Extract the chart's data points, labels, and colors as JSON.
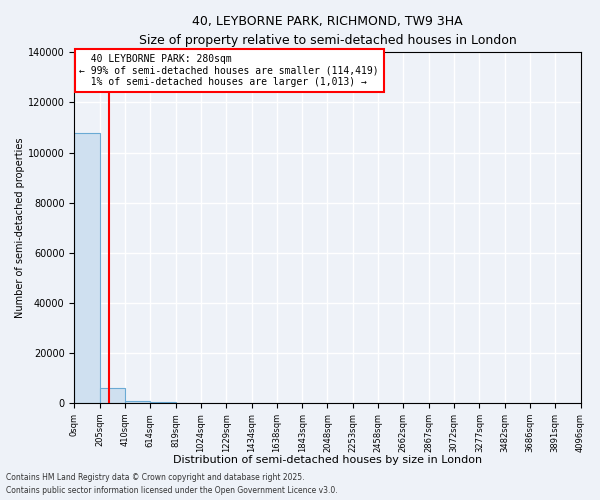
{
  "title": "40, LEYBORNE PARK, RICHMOND, TW9 3HA",
  "subtitle": "Size of property relative to semi-detached houses in London",
  "xlabel": "Distribution of semi-detached houses by size in London",
  "ylabel": "Number of semi-detached properties",
  "bar_color": "#cfe0f0",
  "bar_edge_color": "#6aaad4",
  "vline_color": "red",
  "vline_x": 280,
  "annotation_title": "40 LEYBORNE PARK: 280sqm",
  "annotation_line1": "← 99% of semi-detached houses are smaller (114,419)",
  "annotation_line2": "1% of semi-detached houses are larger (1,013) →",
  "bin_edges": [
    0,
    205,
    410,
    614,
    819,
    1024,
    1229,
    1434,
    1638,
    1843,
    2048,
    2253,
    2458,
    2662,
    2867,
    3072,
    3277,
    3482,
    3686,
    3891,
    4096
  ],
  "bar_heights": [
    108000,
    6200,
    900,
    250,
    100,
    50,
    30,
    18,
    12,
    8,
    6,
    5,
    4,
    3,
    3,
    2,
    2,
    1,
    1,
    1
  ],
  "ylim": [
    0,
    140000
  ],
  "yticks": [
    0,
    20000,
    40000,
    60000,
    80000,
    100000,
    120000,
    140000
  ],
  "footnote1": "Contains HM Land Registry data © Crown copyright and database right 2025.",
  "footnote2": "Contains public sector information licensed under the Open Government Licence v3.0.",
  "background_color": "#eef2f8",
  "grid_color": "white"
}
